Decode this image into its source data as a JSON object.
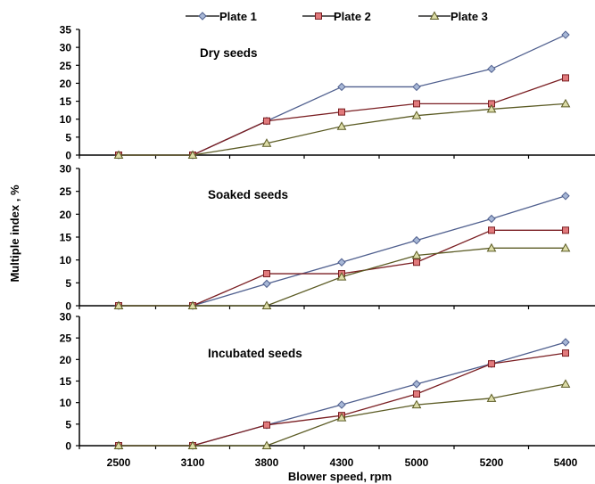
{
  "chart_data": {
    "type": "line",
    "xlabel": "Blower speed, rpm",
    "ylabel": "Multiple index , %",
    "categories": [
      "2500",
      "3100",
      "3800",
      "4300",
      "5000",
      "5200",
      "5400"
    ],
    "legend": {
      "position": "top",
      "entries": [
        {
          "name": "Plate 1",
          "color": "#4f5f8e",
          "fill": "#a7b7d6",
          "marker": "diamond"
        },
        {
          "name": "Plate 2",
          "color": "#7a1e22",
          "fill": "#e17a7c",
          "marker": "square"
        },
        {
          "name": "Plate 3",
          "color": "#5b5b24",
          "fill": "#dcdca8",
          "marker": "triangle"
        }
      ]
    },
    "panels": [
      {
        "title": "Dry seeds",
        "ylim": [
          0,
          35
        ],
        "yticks": [
          0,
          5,
          10,
          15,
          20,
          25,
          30,
          35
        ],
        "series": [
          {
            "name": "Plate 1",
            "values": [
              0,
              0,
              9.5,
              19,
              19,
              24,
              33.5
            ]
          },
          {
            "name": "Plate 2",
            "values": [
              0,
              0,
              9.5,
              12,
              14.3,
              14.3,
              21.5
            ]
          },
          {
            "name": "Plate 3",
            "values": [
              0,
              0,
              3.3,
              8,
              11,
              12.8,
              14.3
            ]
          }
        ]
      },
      {
        "title": "Soaked seeds",
        "ylim": [
          0,
          30
        ],
        "yticks": [
          0,
          5,
          10,
          15,
          20,
          25,
          30
        ],
        "series": [
          {
            "name": "Plate 1",
            "values": [
              0,
              0,
              4.8,
              9.5,
              14.3,
              19,
              24
            ]
          },
          {
            "name": "Plate 2",
            "values": [
              0,
              0,
              7,
              7,
              9.5,
              16.5,
              16.5
            ]
          },
          {
            "name": "Plate 3",
            "values": [
              0,
              0,
              0,
              6.3,
              11,
              12.6,
              12.6
            ]
          }
        ]
      },
      {
        "title": "Incubated seeds",
        "ylim": [
          0,
          30
        ],
        "yticks": [
          0,
          5,
          10,
          15,
          20,
          25,
          30
        ],
        "series": [
          {
            "name": "Plate 1",
            "values": [
              0,
              0,
              4.8,
              9.5,
              14.3,
              19,
              24
            ]
          },
          {
            "name": "Plate 2",
            "values": [
              0,
              0,
              4.8,
              7,
              12,
              19,
              21.5
            ]
          },
          {
            "name": "Plate 3",
            "values": [
              0,
              0,
              0,
              6.5,
              9.5,
              11,
              14.3
            ]
          }
        ]
      }
    ]
  }
}
